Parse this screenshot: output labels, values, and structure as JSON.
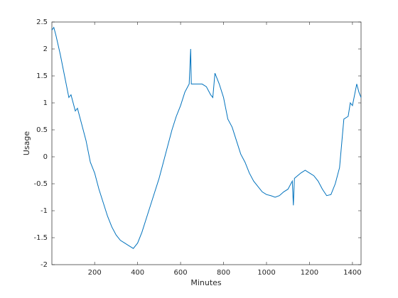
{
  "chart_data": {
    "type": "line",
    "x_label": "Minutes",
    "y_label": "Usage",
    "x": [
      1,
      10,
      20,
      40,
      60,
      70,
      80,
      90,
      100,
      110,
      120,
      140,
      160,
      180,
      200,
      220,
      240,
      260,
      280,
      300,
      320,
      340,
      360,
      380,
      400,
      420,
      440,
      460,
      480,
      500,
      520,
      540,
      560,
      580,
      600,
      620,
      640,
      647,
      650,
      660,
      680,
      700,
      720,
      740,
      750,
      760,
      780,
      800,
      820,
      840,
      860,
      880,
      900,
      920,
      940,
      960,
      980,
      1000,
      1020,
      1040,
      1060,
      1080,
      1100,
      1120,
      1125,
      1130,
      1160,
      1180,
      1200,
      1220,
      1240,
      1260,
      1280,
      1300,
      1320,
      1340,
      1360,
      1380,
      1390,
      1400,
      1420,
      1430,
      1440
    ],
    "series": [
      {
        "name": "Usage",
        "color": "#0072bd",
        "values": [
          2.35,
          2.4,
          2.25,
          1.9,
          1.5,
          1.3,
          1.1,
          1.15,
          1.0,
          0.85,
          0.9,
          0.6,
          0.3,
          -0.1,
          -0.3,
          -0.6,
          -0.85,
          -1.1,
          -1.3,
          -1.45,
          -1.55,
          -1.6,
          -1.65,
          -1.7,
          -1.6,
          -1.4,
          -1.15,
          -0.9,
          -0.65,
          -0.4,
          -0.1,
          0.2,
          0.5,
          0.75,
          0.95,
          1.2,
          1.35,
          2.0,
          1.35,
          1.35,
          1.35,
          1.35,
          1.3,
          1.15,
          1.1,
          1.55,
          1.35,
          1.1,
          0.7,
          0.55,
          0.3,
          0.05,
          -0.1,
          -0.3,
          -0.45,
          -0.55,
          -0.65,
          -0.7,
          -0.72,
          -0.75,
          -0.72,
          -0.65,
          -0.6,
          -0.45,
          -0.9,
          -0.4,
          -0.3,
          -0.25,
          -0.3,
          -0.35,
          -0.45,
          -0.6,
          -0.72,
          -0.7,
          -0.5,
          -0.2,
          0.7,
          0.75,
          1.0,
          0.95,
          1.35,
          1.2,
          1.1
        ]
      }
    ],
    "xlim": [
      1,
      1440
    ],
    "ylim": [
      -2,
      2.5
    ],
    "xticks": [
      200,
      400,
      600,
      800,
      1000,
      1200,
      1400
    ],
    "yticks": [
      -2,
      -1.5,
      -1,
      -0.5,
      0,
      0.5,
      1,
      1.5,
      2,
      2.5
    ],
    "grid": false
  }
}
